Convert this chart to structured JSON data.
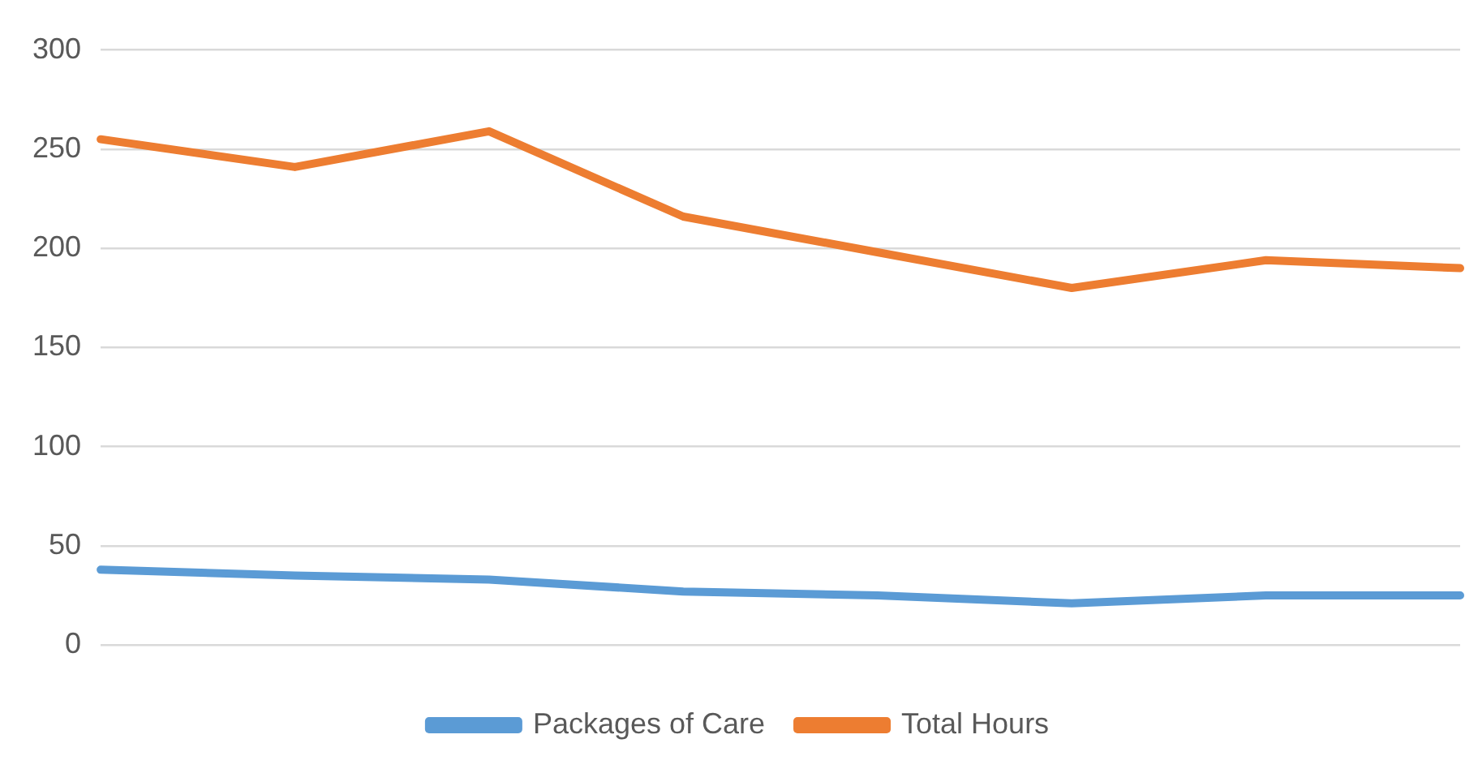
{
  "chart_data": {
    "type": "line",
    "categories": [
      null,
      null,
      null,
      null,
      null,
      null,
      null,
      null
    ],
    "series": [
      {
        "name": "Packages of Care",
        "color": "#5b9bd5",
        "values": [
          38,
          35,
          33,
          27,
          25,
          21,
          25,
          25
        ]
      },
      {
        "name": "Total Hours",
        "color": "#ed7d31",
        "values": [
          255,
          241,
          259,
          216,
          198,
          180,
          194,
          190
        ]
      }
    ],
    "ylim": [
      0,
      300
    ],
    "yticks": [
      0,
      50,
      100,
      150,
      200,
      250,
      300
    ],
    "grid": "y",
    "legend": "bottom",
    "marker": "none",
    "line_style": "solid"
  }
}
